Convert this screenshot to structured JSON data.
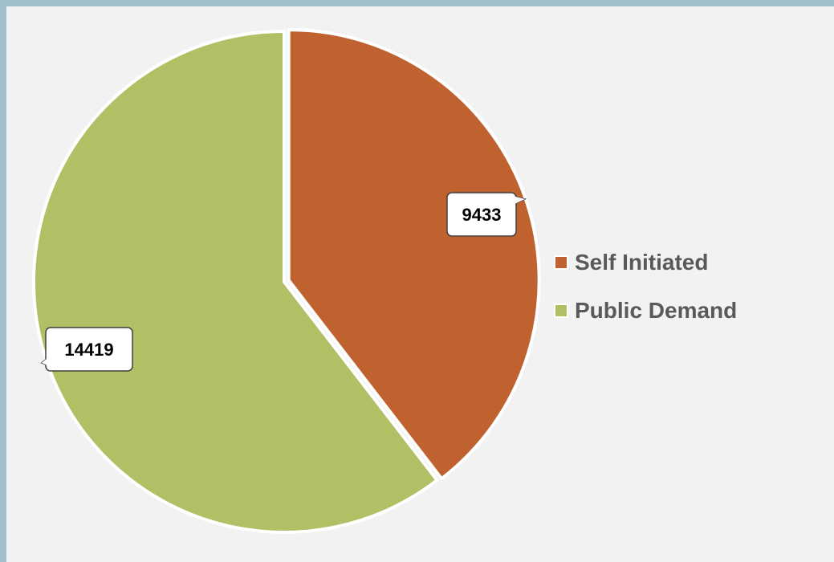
{
  "chart_data": {
    "type": "pie",
    "title": "",
    "slices": [
      {
        "label": "Self Initiated",
        "value": 9433,
        "color": "#c0622f"
      },
      {
        "label": "Public Demand",
        "value": 14419,
        "color": "#b2bf64"
      }
    ],
    "data_labels": "values",
    "legend_position": "right",
    "start_angle": "top (12 o'clock), clockwise"
  },
  "colors": {
    "page_background": "#9fbfcb",
    "plot_background": "#f2f2f2",
    "legend_text": "#595959",
    "slice_border": "#ffffff"
  }
}
